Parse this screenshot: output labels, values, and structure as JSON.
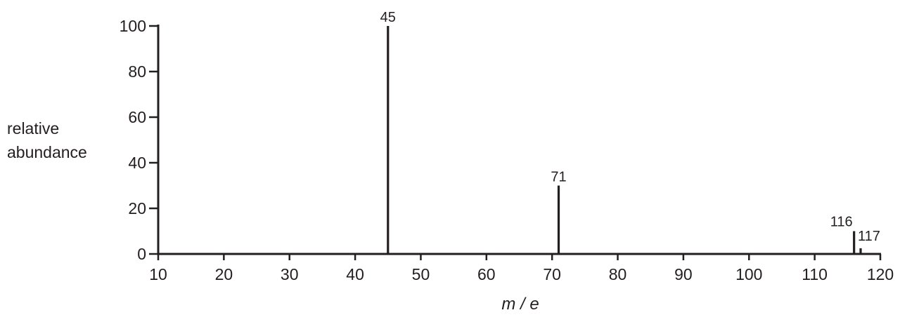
{
  "chart_data": {
    "type": "bar",
    "title": "",
    "xlabel": "m / e",
    "ylabel": [
      "relative",
      "abundance"
    ],
    "xlim": [
      10,
      120
    ],
    "ylim": [
      0,
      100
    ],
    "xticks": [
      "10",
      "20",
      "30",
      "40",
      "50",
      "60",
      "70",
      "80",
      "90",
      "100",
      "110",
      "120"
    ],
    "yticks": [
      "0",
      "20",
      "40",
      "60",
      "80",
      "100"
    ],
    "grid": false,
    "peaks": [
      {
        "x": 45,
        "y": 100,
        "label": "45"
      },
      {
        "x": 71,
        "y": 30,
        "label": "71"
      },
      {
        "x": 116,
        "y": 10,
        "label": "116"
      },
      {
        "x": 117,
        "y": 2.5,
        "label": "117"
      }
    ],
    "colors": {
      "ink": "#231f20"
    }
  }
}
